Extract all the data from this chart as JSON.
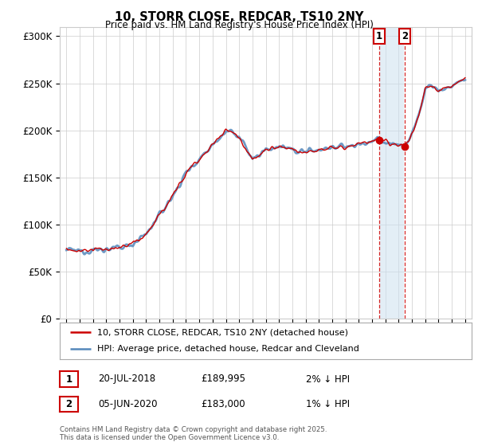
{
  "title": "10, STORR CLOSE, REDCAR, TS10 2NY",
  "subtitle": "Price paid vs. HM Land Registry's House Price Index (HPI)",
  "ylim": [
    0,
    310000
  ],
  "yticks": [
    0,
    50000,
    100000,
    150000,
    200000,
    250000,
    300000
  ],
  "ytick_labels": [
    "£0",
    "£50K",
    "£100K",
    "£150K",
    "£200K",
    "£250K",
    "£300K"
  ],
  "legend_line1": "10, STORR CLOSE, REDCAR, TS10 2NY (detached house)",
  "legend_line2": "HPI: Average price, detached house, Redcar and Cleveland",
  "annotation1_date": "20-JUL-2018",
  "annotation1_price": "£189,995",
  "annotation1_note": "2% ↓ HPI",
  "annotation2_date": "05-JUN-2020",
  "annotation2_price": "£183,000",
  "annotation2_note": "1% ↓ HPI",
  "footer": "Contains HM Land Registry data © Crown copyright and database right 2025.\nThis data is licensed under the Open Government Licence v3.0.",
  "hpi_color": "#5588bb",
  "price_color": "#cc0000",
  "shade_color": "#cce0f0",
  "ann1_x": 2018.55,
  "ann2_x": 2020.45,
  "ann1_y": 189995,
  "ann2_y": 183000,
  "xlim_left": 1994.5,
  "xlim_right": 2025.5,
  "background_color": "#ffffff",
  "grid_color": "#cccccc"
}
